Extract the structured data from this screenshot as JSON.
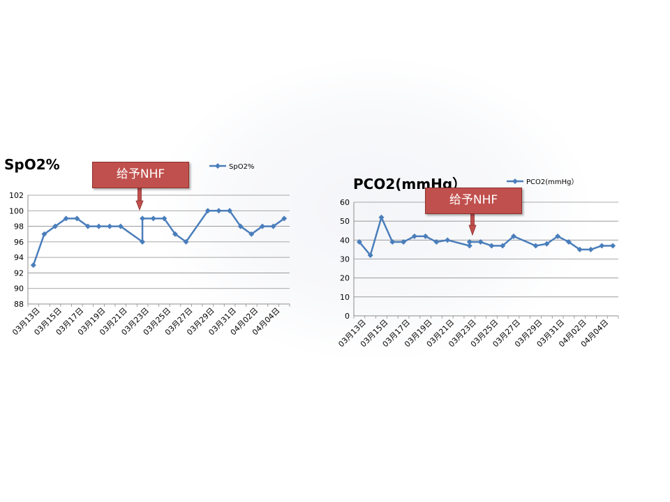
{
  "chart_data": [
    {
      "type": "line",
      "title": "SpO2%",
      "xlabel": "",
      "ylabel": "",
      "ylim": [
        88,
        102
      ],
      "ytick_step": 2,
      "grid": true,
      "legend": "top-center",
      "x_tick_labels": [
        "03月13日",
        "03月15日",
        "03月17日",
        "03月19日",
        "03月21日",
        "03月23日",
        "03月25日",
        "03月27日",
        "03月29日",
        "03月31日",
        "04月02日",
        "04月04日"
      ],
      "series": [
        {
          "name": "SpO2%",
          "color": "#4a7ebb",
          "points": [
            [
              "03月13日",
              93
            ],
            [
              "03月14日",
              97
            ],
            [
              "03月15日",
              98
            ],
            [
              "03月16日",
              99
            ],
            [
              "03月17日",
              99
            ],
            [
              "03月18日",
              98
            ],
            [
              "03月19日",
              98
            ],
            [
              "03月20日",
              98
            ],
            [
              "03月21日",
              98
            ],
            [
              "03月23日",
              96
            ],
            [
              "03月23日",
              99
            ],
            [
              "03月24日",
              99
            ],
            [
              "03月25日",
              99
            ],
            [
              "03月26日",
              97
            ],
            [
              "03月27日",
              96
            ],
            [
              "03月29日",
              100
            ],
            [
              "03月30日",
              100
            ],
            [
              "03月31日",
              100
            ],
            [
              "04月01日",
              98
            ],
            [
              "04月02日",
              97
            ],
            [
              "04月03日",
              98
            ],
            [
              "04月04日",
              98
            ],
            [
              "04月05日",
              99
            ]
          ]
        }
      ],
      "annotation": "给予NHF"
    },
    {
      "type": "line",
      "title": "PCO2(mmHg）",
      "xlabel": "",
      "ylabel": "",
      "ylim": [
        0,
        60
      ],
      "ytick_step": 10,
      "grid": true,
      "legend": "top-right",
      "x_tick_labels": [
        "03月13日",
        "03月15日",
        "03月17日",
        "03月19日",
        "03月21日",
        "03月23日",
        "03月25日",
        "03月27日",
        "03月29日",
        "03月31日",
        "04月02日",
        "04月04日"
      ],
      "series": [
        {
          "name": "PCO2(mmHg）",
          "color": "#4a7ebb",
          "points": [
            [
              "03月13日",
              39
            ],
            [
              "03月14日",
              32
            ],
            [
              "03月15日",
              52
            ],
            [
              "03月16日",
              39
            ],
            [
              "03月17日",
              39
            ],
            [
              "03月18日",
              42
            ],
            [
              "03月19日",
              42
            ],
            [
              "03月20日",
              39
            ],
            [
              "03月21日",
              40
            ],
            [
              "03月23日",
              37
            ],
            [
              "03月23日",
              39
            ],
            [
              "03月24日",
              39
            ],
            [
              "03月25日",
              37
            ],
            [
              "03月26日",
              37
            ],
            [
              "03月27日",
              42
            ],
            [
              "03月29日",
              37
            ],
            [
              "03月30日",
              38
            ],
            [
              "03月31日",
              42
            ],
            [
              "04月01日",
              39
            ],
            [
              "04月02日",
              35
            ],
            [
              "04月03日",
              35
            ],
            [
              "04月04日",
              37
            ],
            [
              "04月05日",
              37
            ]
          ]
        }
      ],
      "annotation": "给予NHF"
    }
  ]
}
